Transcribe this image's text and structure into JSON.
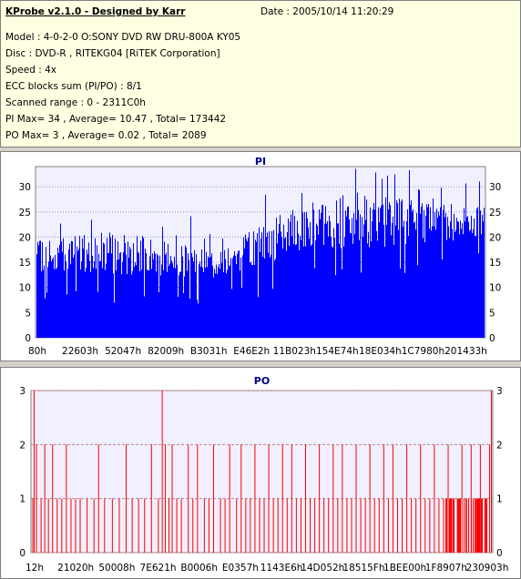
{
  "info": {
    "title": "KProbe v2.1.0 - Designed by Karr",
    "date": "Date : 2005/10/14 11:20:29",
    "lines": [
      "Model : 4-0-2-0 O:SONY    DVD RW DRU-800A  KY05",
      "Disc : DVD-R , RITEKG04 [RiTEK Corporation]",
      "Speed : 4x",
      "ECC blocks sum (PI/PO) : 8/1",
      "Scanned range : 0 - 2311C0h",
      "PI Max= 34 , Average= 10.47 , Total= 173442",
      "PO Max= 3 , Average= 0.02 , Total= 2089"
    ]
  },
  "colors": {
    "pi": "#0000ff",
    "po": "#ff0000",
    "plot_bg": "#f0f0ff",
    "title": "#00008b"
  },
  "chart_data": [
    {
      "type": "bar",
      "title": "PI",
      "ylim": [
        0,
        34
      ],
      "yticks": [
        0,
        5,
        10,
        15,
        20,
        25,
        30
      ],
      "xlim_hex": [
        "0",
        "2311C0h"
      ],
      "xtick_labels": [
        "80h",
        "22603h",
        "52047h",
        "82009h",
        "B3031h",
        "E46E2h",
        "11B023h",
        "154E74h",
        "18E034h",
        "1C7980h",
        "201433h"
      ],
      "grid": "horizontal dotted",
      "profile_x_fraction": [
        0.0,
        0.05,
        0.1,
        0.2,
        0.3,
        0.4,
        0.45,
        0.5,
        0.55,
        0.6,
        0.7,
        0.8,
        0.9,
        1.0
      ],
      "profile_baseline": [
        13,
        13,
        12.5,
        12.5,
        12,
        12,
        13,
        14,
        16,
        17,
        18,
        18,
        19,
        20
      ],
      "profile_peak": [
        19,
        21,
        21,
        21,
        19,
        18,
        20,
        23,
        25,
        26,
        29,
        28,
        27,
        26
      ],
      "max": 34,
      "average": 10.47,
      "total": 173442
    },
    {
      "type": "bar",
      "title": "PO",
      "ylim": [
        0,
        3
      ],
      "yticks": [
        0,
        1,
        2,
        3
      ],
      "xlim_hex": [
        "0",
        "2311C0h"
      ],
      "xtick_labels": [
        "12h",
        "21020h",
        "50008h",
        "7E621h",
        "B0006h",
        "E0357h",
        "1143E6h",
        "14D052h",
        "18515Fh",
        "1BEE00h",
        "1F8907h",
        "230903h"
      ],
      "grid": "horizontal dashed",
      "nonzero_events": [
        {
          "x_fraction": 0.002,
          "value": 1
        },
        {
          "x_fraction": 0.005,
          "value": 3
        },
        {
          "x_fraction": 0.01,
          "value": 2
        },
        {
          "x_fraction": 0.02,
          "value": 1
        },
        {
          "x_fraction": 0.028,
          "value": 2
        },
        {
          "x_fraction": 0.036,
          "value": 1
        },
        {
          "x_fraction": 0.045,
          "value": 2
        },
        {
          "x_fraction": 0.055,
          "value": 1
        },
        {
          "x_fraction": 0.065,
          "value": 1
        },
        {
          "x_fraction": 0.075,
          "value": 2
        },
        {
          "x_fraction": 0.085,
          "value": 1
        },
        {
          "x_fraction": 0.095,
          "value": 1
        },
        {
          "x_fraction": 0.105,
          "value": 1
        },
        {
          "x_fraction": 0.12,
          "value": 1
        },
        {
          "x_fraction": 0.135,
          "value": 1
        },
        {
          "x_fraction": 0.145,
          "value": 2
        },
        {
          "x_fraction": 0.158,
          "value": 1
        },
        {
          "x_fraction": 0.175,
          "value": 1
        },
        {
          "x_fraction": 0.19,
          "value": 1
        },
        {
          "x_fraction": 0.205,
          "value": 2
        },
        {
          "x_fraction": 0.218,
          "value": 1
        },
        {
          "x_fraction": 0.232,
          "value": 1
        },
        {
          "x_fraction": 0.245,
          "value": 1
        },
        {
          "x_fraction": 0.26,
          "value": 2
        },
        {
          "x_fraction": 0.275,
          "value": 1
        },
        {
          "x_fraction": 0.29,
          "value": 2
        },
        {
          "x_fraction": 0.298,
          "value": 1
        },
        {
          "x_fraction": 0.2835,
          "value": 3
        },
        {
          "x_fraction": 0.305,
          "value": 2
        },
        {
          "x_fraction": 0.315,
          "value": 1
        },
        {
          "x_fraction": 0.325,
          "value": 1
        },
        {
          "x_fraction": 0.34,
          "value": 2
        },
        {
          "x_fraction": 0.35,
          "value": 1
        },
        {
          "x_fraction": 0.36,
          "value": 2
        },
        {
          "x_fraction": 0.375,
          "value": 1
        },
        {
          "x_fraction": 0.385,
          "value": 1
        },
        {
          "x_fraction": 0.395,
          "value": 2
        },
        {
          "x_fraction": 0.41,
          "value": 1
        },
        {
          "x_fraction": 0.42,
          "value": 1
        },
        {
          "x_fraction": 0.43,
          "value": 2
        },
        {
          "x_fraction": 0.445,
          "value": 1
        },
        {
          "x_fraction": 0.455,
          "value": 2
        },
        {
          "x_fraction": 0.465,
          "value": 1
        },
        {
          "x_fraction": 0.475,
          "value": 1
        },
        {
          "x_fraction": 0.485,
          "value": 2
        },
        {
          "x_fraction": 0.495,
          "value": 1
        },
        {
          "x_fraction": 0.505,
          "value": 1
        },
        {
          "x_fraction": 0.515,
          "value": 2
        },
        {
          "x_fraction": 0.525,
          "value": 1
        },
        {
          "x_fraction": 0.535,
          "value": 1
        },
        {
          "x_fraction": 0.545,
          "value": 2
        },
        {
          "x_fraction": 0.555,
          "value": 1
        },
        {
          "x_fraction": 0.565,
          "value": 2
        },
        {
          "x_fraction": 0.575,
          "value": 1
        },
        {
          "x_fraction": 0.585,
          "value": 1
        },
        {
          "x_fraction": 0.595,
          "value": 2
        },
        {
          "x_fraction": 0.605,
          "value": 1
        },
        {
          "x_fraction": 0.615,
          "value": 1
        },
        {
          "x_fraction": 0.625,
          "value": 2
        },
        {
          "x_fraction": 0.635,
          "value": 1
        },
        {
          "x_fraction": 0.645,
          "value": 1
        },
        {
          "x_fraction": 0.655,
          "value": 2
        },
        {
          "x_fraction": 0.665,
          "value": 1
        },
        {
          "x_fraction": 0.675,
          "value": 2
        },
        {
          "x_fraction": 0.685,
          "value": 1
        },
        {
          "x_fraction": 0.695,
          "value": 1
        },
        {
          "x_fraction": 0.705,
          "value": 2
        },
        {
          "x_fraction": 0.715,
          "value": 1
        },
        {
          "x_fraction": 0.725,
          "value": 1
        },
        {
          "x_fraction": 0.735,
          "value": 2
        },
        {
          "x_fraction": 0.745,
          "value": 1
        },
        {
          "x_fraction": 0.755,
          "value": 1
        },
        {
          "x_fraction": 0.765,
          "value": 2
        },
        {
          "x_fraction": 0.775,
          "value": 1
        },
        {
          "x_fraction": 0.785,
          "value": 2
        },
        {
          "x_fraction": 0.795,
          "value": 1
        },
        {
          "x_fraction": 0.805,
          "value": 1
        },
        {
          "x_fraction": 0.815,
          "value": 2
        },
        {
          "x_fraction": 0.825,
          "value": 1
        },
        {
          "x_fraction": 0.835,
          "value": 1
        },
        {
          "x_fraction": 0.845,
          "value": 2
        },
        {
          "x_fraction": 0.855,
          "value": 1
        },
        {
          "x_fraction": 0.865,
          "value": 1
        },
        {
          "x_fraction": 0.875,
          "value": 2
        },
        {
          "x_fraction": 0.885,
          "value": 1
        },
        {
          "x_fraction": 0.895,
          "value": 1
        },
        {
          "x_fraction": 0.905,
          "value": 2
        },
        {
          "x_fraction": 0.915,
          "value": 1
        },
        {
          "x_fraction": 0.925,
          "value": 1
        },
        {
          "x_fraction": 0.935,
          "value": 2
        },
        {
          "x_fraction": 0.945,
          "value": 1
        },
        {
          "x_fraction": 0.955,
          "value": 2
        },
        {
          "x_fraction": 0.965,
          "value": 1
        },
        {
          "x_fraction": 0.975,
          "value": 2
        },
        {
          "x_fraction": 0.985,
          "value": 1
        },
        {
          "x_fraction": 0.995,
          "value": 2
        },
        {
          "x_fraction": 0.999,
          "value": 3
        }
      ],
      "dense_range_x_fraction": [
        0.9,
        0.99
      ],
      "max": 3,
      "average": 0.02,
      "total": 2089
    }
  ]
}
